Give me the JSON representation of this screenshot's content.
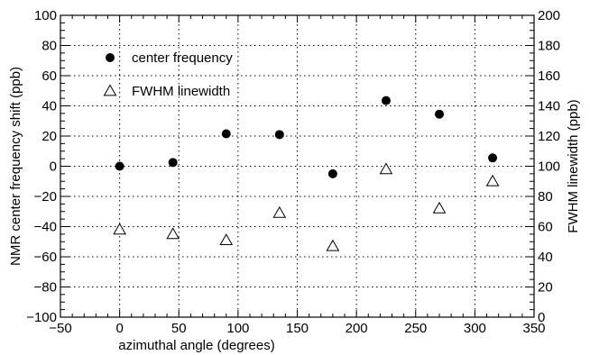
{
  "chart_data": {
    "type": "scatter",
    "xlabel": "azimuthal angle (degrees)",
    "ylabel": "NMR center frequency shift (ppb)",
    "y2label": "FWHM linewidth (ppb)",
    "xlim": [
      -50,
      350
    ],
    "ylim": [
      -100,
      100
    ],
    "y2lim": [
      0,
      200
    ],
    "x_ticks": [
      -50,
      0,
      50,
      100,
      150,
      200,
      250,
      300,
      350
    ],
    "y_ticks": [
      -100,
      -80,
      -60,
      -40,
      -20,
      0,
      20,
      40,
      60,
      80,
      100
    ],
    "y2_ticks": [
      0,
      20,
      40,
      60,
      80,
      100,
      120,
      140,
      160,
      180,
      200
    ],
    "grid": true,
    "legend_position": "top-left",
    "series": [
      {
        "name": "center frequency",
        "axis": "left",
        "marker": "filled-circle",
        "color": "#000000",
        "x": [
          0,
          45,
          90,
          135,
          180,
          225,
          270,
          315
        ],
        "y": [
          0,
          2.5,
          21.5,
          21,
          -5,
          43.5,
          34.5,
          5.5
        ]
      },
      {
        "name": "FWHM linewidth",
        "axis": "right",
        "marker": "open-triangle",
        "color": "#000000",
        "x": [
          0,
          45,
          90,
          135,
          180,
          225,
          270,
          315
        ],
        "y": [
          58,
          55,
          51,
          69,
          47,
          98,
          72,
          90
        ]
      }
    ]
  }
}
